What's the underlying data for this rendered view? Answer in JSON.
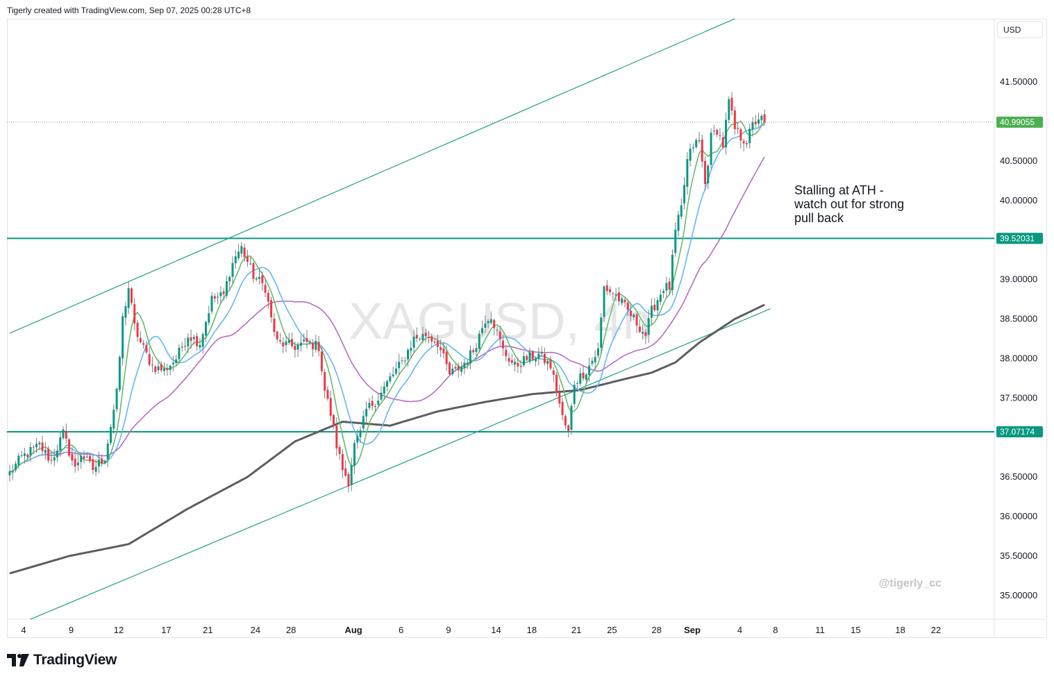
{
  "header": {
    "credit": "Tigerly created with TradingView.com, Sep 07, 2025 00:28 UTC+8"
  },
  "chart_data": {
    "type": "candlestick",
    "symbol_watermark": "XAGUSD, 4h",
    "currency": "USD",
    "y_axis": {
      "ticks": [
        "41.50000",
        "40.50000",
        "40.00000",
        "39.00000",
        "38.50000",
        "38.00000",
        "37.50000",
        "36.50000",
        "36.00000",
        "35.50000",
        "35.00000"
      ],
      "range": [
        34.7,
        42.3
      ]
    },
    "x_axis": {
      "ticks": [
        {
          "label": "4",
          "index": 0
        },
        {
          "label": "9",
          "index": 16
        },
        {
          "label": "12",
          "index": 32
        },
        {
          "label": "17",
          "index": 48
        },
        {
          "label": "21",
          "index": 62
        },
        {
          "label": "24",
          "index": 78
        },
        {
          "label": "28",
          "index": 90
        },
        {
          "label": "Aug",
          "index": 111,
          "bold": true
        },
        {
          "label": "6",
          "index": 127
        },
        {
          "label": "9",
          "index": 143
        },
        {
          "label": "14",
          "index": 159
        },
        {
          "label": "18",
          "index": 171
        },
        {
          "label": "21",
          "index": 186
        },
        {
          "label": "25",
          "index": 198
        },
        {
          "label": "28",
          "index": 213
        },
        {
          "label": "Sep",
          "index": 225,
          "bold": true
        },
        {
          "label": "4",
          "index": 241
        },
        {
          "label": "8",
          "index": 253
        },
        {
          "label": "11",
          "index": 268
        },
        {
          "label": "15",
          "index": 280
        },
        {
          "label": "18",
          "index": 295
        },
        {
          "label": "22",
          "index": 307
        }
      ],
      "bars_total": 318
    },
    "current_price": {
      "label": "40.99055",
      "value": 40.99055,
      "color": "#4caf50"
    },
    "horizontal_levels": [
      {
        "label": "39.52031",
        "value": 39.52031,
        "color": "#089981"
      },
      {
        "label": "37.07174",
        "value": 37.07174,
        "color": "#089981"
      }
    ],
    "trendlines": [
      {
        "name": "channel-upper",
        "from": {
          "index": 0,
          "value": 38.32
        },
        "to": {
          "index": 244,
          "value": 42.3
        },
        "color": "#089981"
      },
      {
        "name": "channel-lower",
        "from": {
          "index": 7,
          "value": 34.7
        },
        "to": {
          "index": 256,
          "value": 38.63
        },
        "color": "#089981"
      }
    ],
    "annotation": {
      "lines": [
        "Stalling at ATH -",
        "watch out for strong",
        "pull back"
      ]
    },
    "watermark_handle": "@tigerly_cc",
    "anchors": [
      [
        0,
        36.55
      ],
      [
        4,
        36.75
      ],
      [
        10,
        36.9
      ],
      [
        14,
        36.7
      ],
      [
        18,
        37.05
      ],
      [
        22,
        36.6
      ],
      [
        24,
        36.8
      ],
      [
        28,
        36.6
      ],
      [
        32,
        36.75
      ],
      [
        36,
        37.55
      ],
      [
        38,
        38.5
      ],
      [
        40,
        38.9
      ],
      [
        42,
        38.4
      ],
      [
        44,
        38.2
      ],
      [
        48,
        37.9
      ],
      [
        52,
        37.85
      ],
      [
        56,
        38.0
      ],
      [
        60,
        38.3
      ],
      [
        64,
        38.2
      ],
      [
        68,
        38.75
      ],
      [
        72,
        38.8
      ],
      [
        74,
        39.1
      ],
      [
        76,
        39.3
      ],
      [
        78,
        39.4
      ],
      [
        82,
        39.05
      ],
      [
        86,
        38.9
      ],
      [
        88,
        38.5
      ],
      [
        90,
        38.2
      ],
      [
        96,
        38.15
      ],
      [
        100,
        38.2
      ],
      [
        104,
        38.15
      ],
      [
        106,
        37.6
      ],
      [
        108,
        37.3
      ],
      [
        110,
        36.9
      ],
      [
        112,
        36.6
      ],
      [
        114,
        36.45
      ],
      [
        116,
        36.9
      ],
      [
        118,
        37.05
      ],
      [
        120,
        37.35
      ],
      [
        124,
        37.5
      ],
      [
        128,
        37.75
      ],
      [
        132,
        37.95
      ],
      [
        136,
        38.25
      ],
      [
        140,
        38.3
      ],
      [
        144,
        38.2
      ],
      [
        148,
        37.8
      ],
      [
        152,
        37.9
      ],
      [
        156,
        38.1
      ],
      [
        160,
        38.5
      ],
      [
        162,
        38.55
      ],
      [
        166,
        38.1
      ],
      [
        170,
        37.9
      ],
      [
        174,
        38.0
      ],
      [
        178,
        38.05
      ],
      [
        182,
        37.9
      ],
      [
        184,
        37.6
      ],
      [
        186,
        37.25
      ],
      [
        188,
        37.05
      ],
      [
        190,
        37.7
      ],
      [
        194,
        37.85
      ],
      [
        198,
        38.1
      ],
      [
        200,
        38.9
      ],
      [
        204,
        38.8
      ],
      [
        208,
        38.6
      ],
      [
        212,
        38.4
      ],
      [
        214,
        38.3
      ],
      [
        216,
        38.6
      ],
      [
        220,
        38.9
      ],
      [
        222,
        38.9
      ],
      [
        224,
        39.6
      ],
      [
        226,
        39.9
      ],
      [
        228,
        40.5
      ],
      [
        230,
        40.7
      ],
      [
        232,
        40.75
      ],
      [
        234,
        40.2
      ],
      [
        236,
        40.8
      ],
      [
        238,
        40.9
      ],
      [
        240,
        40.7
      ],
      [
        242,
        41.25
      ],
      [
        244,
        40.9
      ],
      [
        246,
        40.8
      ],
      [
        248,
        40.75
      ],
      [
        250,
        40.95
      ],
      [
        252,
        41.05
      ],
      [
        254,
        40.99055
      ]
    ],
    "moving_averages": [
      {
        "name": "ma-fast",
        "period": 6,
        "color": "#66bb6a"
      },
      {
        "name": "ma-medium",
        "period": 13,
        "color": "#64b5f6"
      },
      {
        "name": "ma-slow",
        "period": 34,
        "color": "#ba68c8"
      },
      {
        "name": "ma-long",
        "color": "#5d5d5d",
        "anchors": [
          [
            0,
            35.28
          ],
          [
            20,
            35.5
          ],
          [
            40,
            35.65
          ],
          [
            60,
            36.1
          ],
          [
            80,
            36.5
          ],
          [
            96,
            36.95
          ],
          [
            112,
            37.2
          ],
          [
            128,
            37.15
          ],
          [
            144,
            37.33
          ],
          [
            160,
            37.45
          ],
          [
            176,
            37.55
          ],
          [
            192,
            37.6
          ],
          [
            208,
            37.75
          ],
          [
            216,
            37.82
          ],
          [
            224,
            37.95
          ],
          [
            232,
            38.2
          ],
          [
            244,
            38.5
          ],
          [
            254,
            38.68
          ]
        ]
      }
    ],
    "colors": {
      "up": "#089981",
      "down": "#f23645",
      "wick": "#787b86"
    }
  },
  "footer": {
    "logo_text": "TradingView"
  }
}
